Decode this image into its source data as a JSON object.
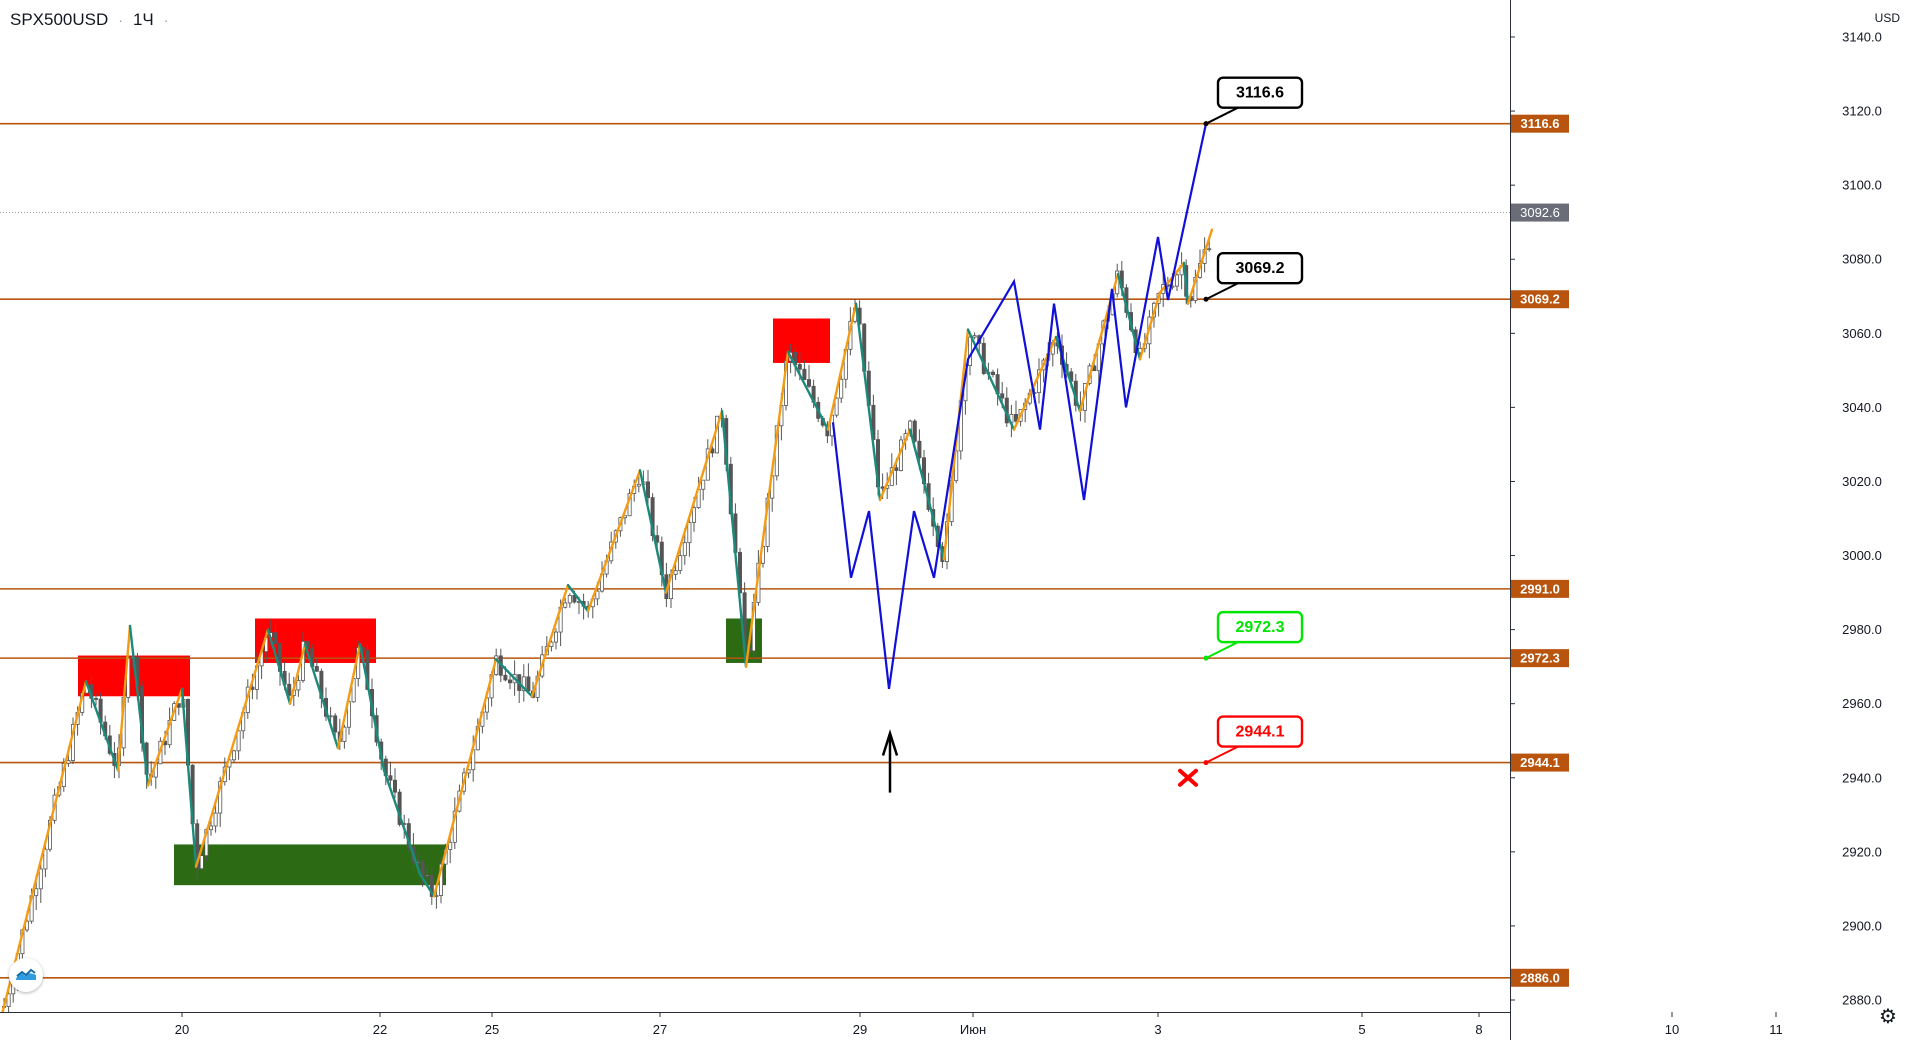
{
  "header": {
    "symbol": "SPX500USD",
    "interval": "1Ч",
    "dot": "·"
  },
  "currency": "USD",
  "y_axis": {
    "min": 2874,
    "max": 3144,
    "ticks": [
      3140.0,
      3120.0,
      3100.0,
      3080.0,
      3060.0,
      3040.0,
      3020.0,
      3000.0,
      2980.0,
      2960.0,
      2940.0,
      2920.0,
      2900.0,
      2880.0
    ]
  },
  "x_axis_labels": [
    "20",
    "22",
    "25",
    "27",
    "29",
    "Июн",
    "3",
    "5",
    "8",
    "10",
    "11"
  ],
  "last_price": {
    "label": "3092.6",
    "value": 3092.6,
    "color": "#6a6d78"
  },
  "levels": [
    {
      "value": 3116.6,
      "label": "3116.6"
    },
    {
      "value": 3069.2,
      "label": "3069.2"
    },
    {
      "value": 2991.0,
      "label": "2991.0"
    },
    {
      "value": 2972.3,
      "label": "2972.3"
    },
    {
      "value": 2944.1,
      "label": "2944.1"
    },
    {
      "value": 2886.0,
      "label": "2886.0"
    }
  ],
  "callouts": [
    {
      "label": "3116.6",
      "value": 3116.6,
      "color": "#000000"
    },
    {
      "label": "3069.2",
      "value": 3069.2,
      "color": "#000000"
    },
    {
      "label": "2972.3",
      "value": 2972.3,
      "color": "#00e600"
    },
    {
      "label": "2944.1",
      "value": 2944.1,
      "color": "#ff0000"
    }
  ],
  "colors": {
    "level_line": "#b8540e",
    "candle": "#555555",
    "zigzag_up": "#f39c12",
    "zigzag_down": "#1b8a7a",
    "forecast": "#1010d8",
    "supply_zone": "#ff0000",
    "demand_zone": "#2d6a14"
  },
  "annotations": {
    "arrow": "up-arrow-icon",
    "cross": "red-cross-icon"
  }
}
